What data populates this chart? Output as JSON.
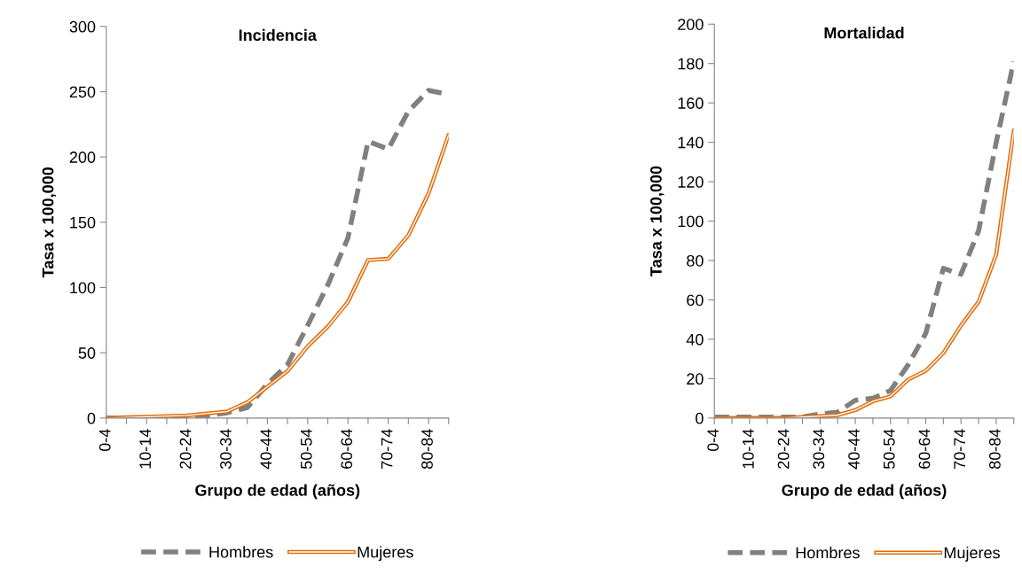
{
  "chart_data": [
    {
      "type": "line",
      "title": "Incidencia",
      "xlabel": "Grupo de edad (años)",
      "ylabel": "Tasa x 100,000",
      "categories": [
        "0-4",
        null,
        "10-14",
        null,
        "20-24",
        null,
        "30-34",
        null,
        "40-44",
        null,
        "50-54",
        null,
        "60-64",
        null,
        "70-74",
        null,
        "80-84",
        null
      ],
      "series": [
        {
          "name": "Hombres",
          "color": "#808080",
          "line_style": "dashed",
          "values": [
            0,
            0,
            0,
            0.5,
            1,
            2,
            4,
            8,
            26,
            41,
            71,
            102,
            138,
            212,
            206,
            235,
            251,
            248
          ]
        },
        {
          "name": "Mujeres",
          "color": "#e46c0a",
          "line_style": "solid",
          "values": [
            0,
            0.5,
            1,
            1.5,
            2,
            3.5,
            5,
            12,
            24,
            36,
            55,
            70,
            89,
            121,
            122,
            140,
            172,
            217
          ]
        }
      ],
      "ylim": [
        0,
        300
      ],
      "yticks": [
        0,
        50,
        100,
        150,
        200,
        250,
        300
      ],
      "grid": false,
      "legend": "bottom"
    },
    {
      "type": "line",
      "title": "Mortalidad",
      "xlabel": "Grupo de edad (años)",
      "ylabel": "Tasa x 100,000",
      "categories": [
        "0-4",
        null,
        "10-14",
        null,
        "20-24",
        null,
        "30-34",
        null,
        "40-44",
        null,
        "50-54",
        null,
        "60-64",
        null,
        "70-74",
        null,
        "80-84",
        null
      ],
      "series": [
        {
          "name": "Hombres",
          "color": "#808080",
          "line_style": "dashed",
          "values": [
            0.5,
            0.5,
            0.5,
            0.5,
            0.5,
            0.5,
            2,
            3,
            9,
            10,
            14,
            27,
            43,
            76,
            73,
            95,
            140,
            181
          ]
        },
        {
          "name": "Mujeres",
          "color": "#e46c0a",
          "line_style": "solid",
          "values": [
            0,
            0,
            0,
            0,
            0,
            0.5,
            1,
            1.5,
            4,
            8.5,
            11,
            19.5,
            24,
            33,
            47,
            59,
            83,
            146
          ]
        }
      ],
      "ylim": [
        0,
        200
      ],
      "yticks": [
        0,
        20,
        40,
        60,
        80,
        100,
        120,
        140,
        160,
        180,
        200
      ],
      "grid": false,
      "legend": "bottom"
    }
  ]
}
